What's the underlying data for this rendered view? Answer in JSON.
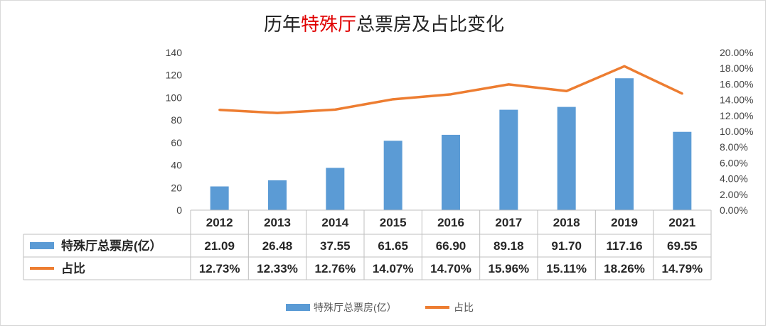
{
  "chart_data": {
    "type": "bar",
    "title_prefix": "历年",
    "title_highlight": "特殊厅",
    "title_suffix": "总票房及占比变化",
    "categories": [
      "2012",
      "2013",
      "2014",
      "2015",
      "2016",
      "2017",
      "2018",
      "2019",
      "2021"
    ],
    "series": [
      {
        "name": "特殊厅总票房(亿）",
        "type": "bar",
        "axis": "left",
        "values": [
          21.09,
          26.48,
          37.55,
          61.65,
          66.9,
          89.18,
          91.7,
          117.16,
          69.55
        ],
        "labels": [
          "21.09",
          "26.48",
          "37.55",
          "61.65",
          "66.90",
          "89.18",
          "91.70",
          "117.16",
          "69.55"
        ],
        "color": "#5b9bd5"
      },
      {
        "name": "占比",
        "type": "line",
        "axis": "right",
        "values": [
          12.73,
          12.33,
          12.76,
          14.07,
          14.7,
          15.96,
          15.11,
          18.26,
          14.79
        ],
        "labels": [
          "12.73%",
          "12.33%",
          "12.76%",
          "14.07%",
          "14.70%",
          "15.96%",
          "15.11%",
          "18.26%",
          "14.79%"
        ],
        "color": "#ed7d31"
      }
    ],
    "ylim_left": [
      0,
      140
    ],
    "yticks_left": [
      "0",
      "20",
      "40",
      "60",
      "80",
      "100",
      "120",
      "140"
    ],
    "ylim_right": [
      0,
      20
    ],
    "yticks_right": [
      "0.00%",
      "2.00%",
      "4.00%",
      "6.00%",
      "8.00%",
      "10.00%",
      "12.00%",
      "14.00%",
      "16.00%",
      "18.00%",
      "20.00%"
    ],
    "grid": false,
    "data_table": true,
    "legend_position": "bottom"
  }
}
